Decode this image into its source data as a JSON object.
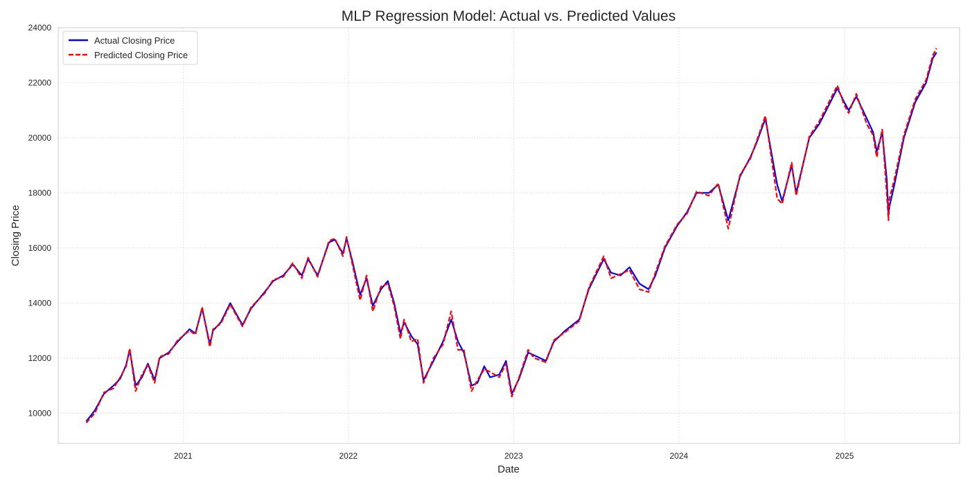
{
  "chart_data": {
    "type": "line",
    "title": "MLP Regression Model: Actual vs. Predicted Values",
    "xlabel": "Date",
    "ylabel": "Closing Price",
    "xlim": [
      "2020-03-31",
      "2025-09-12"
    ],
    "ylim": [
      8900,
      24000
    ],
    "x_ticks": [
      "2021-01-01",
      "2022-01-01",
      "2023-01-01",
      "2024-01-01",
      "2025-01-01"
    ],
    "x_tick_labels": [
      "2021",
      "2022",
      "2023",
      "2024",
      "2025"
    ],
    "y_ticks": [
      10000,
      12000,
      14000,
      16000,
      18000,
      20000,
      22000,
      24000
    ],
    "y_tick_labels": [
      "10000",
      "12000",
      "14000",
      "16000",
      "18000",
      "20000",
      "22000",
      "24000"
    ],
    "grid": true,
    "legend_position": "top-left",
    "series": [
      {
        "name": "Actual Closing Price",
        "color": "#0000ff",
        "style": "solid"
      },
      {
        "name": "Predicted Closing Price",
        "color": "#ff0000",
        "style": "dashed"
      }
    ],
    "x": [
      "2020-06-01",
      "2020-06-20",
      "2020-07-10",
      "2020-07-31",
      "2020-08-15",
      "2020-08-28",
      "2020-09-05",
      "2020-09-18",
      "2020-10-02",
      "2020-10-15",
      "2020-10-30",
      "2020-11-10",
      "2020-11-30",
      "2020-12-20",
      "2021-01-15",
      "2021-01-28",
      "2021-02-12",
      "2021-03-01",
      "2021-03-08",
      "2021-03-25",
      "2021-04-15",
      "2021-05-12",
      "2021-05-31",
      "2021-06-30",
      "2021-07-19",
      "2021-08-10",
      "2021-08-31",
      "2021-09-20",
      "2021-10-04",
      "2021-10-25",
      "2021-11-19",
      "2021-12-02",
      "2021-12-20",
      "2021-12-28",
      "2022-01-10",
      "2022-01-27",
      "2022-02-10",
      "2022-02-24",
      "2022-03-14",
      "2022-03-29",
      "2022-04-12",
      "2022-04-26",
      "2022-05-04",
      "2022-05-20",
      "2022-06-03",
      "2022-06-16",
      "2022-07-08",
      "2022-07-29",
      "2022-08-16",
      "2022-08-31",
      "2022-09-13",
      "2022-09-30",
      "2022-10-13",
      "2022-10-28",
      "2022-11-10",
      "2022-11-30",
      "2022-12-15",
      "2022-12-28",
      "2023-01-13",
      "2023-02-02",
      "2023-02-15",
      "2023-03-13",
      "2023-03-31",
      "2023-04-25",
      "2023-05-26",
      "2023-06-16",
      "2023-07-19",
      "2023-08-04",
      "2023-08-25",
      "2023-09-14",
      "2023-10-06",
      "2023-10-26",
      "2023-11-10",
      "2023-12-01",
      "2023-12-28",
      "2024-01-19",
      "2024-02-09",
      "2024-03-07",
      "2024-03-28",
      "2024-04-19",
      "2024-05-15",
      "2024-06-07",
      "2024-06-20",
      "2024-07-10",
      "2024-07-24",
      "2024-08-05",
      "2024-08-16",
      "2024-09-06",
      "2024-09-16",
      "2024-10-15",
      "2024-11-06",
      "2024-12-16",
      "2024-12-31",
      "2025-01-10",
      "2025-01-27",
      "2025-02-19",
      "2025-03-05",
      "2025-03-13",
      "2025-03-25",
      "2025-04-04",
      "2025-04-08",
      "2025-04-10",
      "2025-04-21",
      "2025-05-12",
      "2025-06-06",
      "2025-06-30",
      "2025-07-15",
      "2025-07-23"
    ],
    "actual": [
      9700,
      10100,
      10700,
      11000,
      11250,
      11750,
      12300,
      11000,
      11300,
      11800,
      11200,
      12000,
      12200,
      12600,
      13050,
      12900,
      13800,
      12500,
      13000,
      13300,
      14000,
      13200,
      13800,
      14400,
      14800,
      15000,
      15400,
      15000,
      15600,
      15000,
      16200,
      16300,
      15800,
      16350,
      15500,
      14300,
      14900,
      13900,
      14500,
      14800,
      14000,
      12900,
      13300,
      12800,
      12500,
      11200,
      11900,
      12600,
      13400,
      12600,
      12200,
      11000,
      11100,
      11700,
      11300,
      11400,
      11900,
      10700,
      11250,
      12200,
      12100,
      11900,
      12600,
      13000,
      13400,
      14500,
      15600,
      15100,
      15000,
      15300,
      14700,
      14500,
      15000,
      16000,
      16800,
      17300,
      18000,
      18000,
      18300,
      17000,
      18600,
      19300,
      19800,
      20700,
      19400,
      18300,
      17700,
      19000,
      18000,
      20000,
      20500,
      21800,
      21300,
      21000,
      21500,
      20700,
      20200,
      19500,
      20200,
      18500,
      17200,
      17500,
      18300,
      20000,
      21300,
      22000,
      22900,
      23100
    ],
    "predicted": [
      9650,
      10000,
      10750,
      10900,
      11300,
      11700,
      12350,
      10800,
      11400,
      11750,
      11100,
      12050,
      12150,
      12650,
      13000,
      12850,
      13850,
      12400,
      13050,
      13250,
      13950,
      13150,
      13850,
      14350,
      14850,
      14950,
      15450,
      14900,
      15650,
      14950,
      16250,
      16350,
      15700,
      16400,
      15400,
      14100,
      15000,
      13700,
      14600,
      14700,
      13900,
      12700,
      13400,
      12600,
      12700,
      11100,
      12000,
      12500,
      13700,
      12300,
      12300,
      10800,
      11200,
      11600,
      11500,
      11300,
      11800,
      10600,
      11300,
      12300,
      12000,
      11850,
      12650,
      12950,
      13350,
      14550,
      15700,
      14900,
      15050,
      15200,
      14500,
      14400,
      15100,
      16050,
      16850,
      17250,
      18050,
      17900,
      18350,
      16700,
      18650,
      19250,
      19850,
      20800,
      19200,
      17800,
      17600,
      19100,
      17900,
      20050,
      20600,
      21900,
      21200,
      20900,
      21600,
      20500,
      20100,
      19300,
      20300,
      18000,
      17000,
      17800,
      18500,
      20100,
      21400,
      22100,
      23000,
      23250
    ]
  }
}
